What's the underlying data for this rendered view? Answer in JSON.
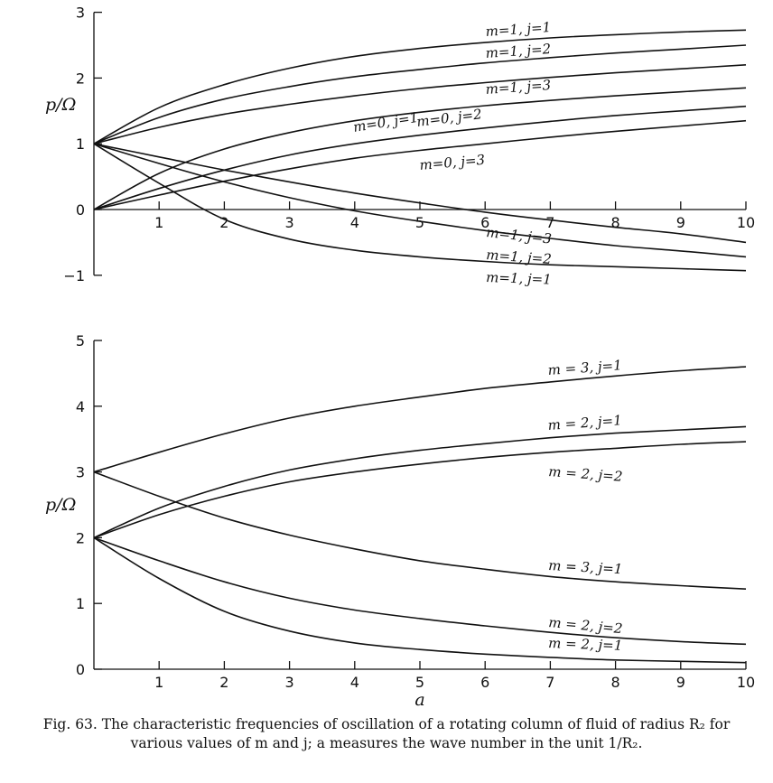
{
  "chart_data": [
    {
      "type": "line",
      "ylabel": "p/Ω",
      "xlabel": "",
      "xlim": [
        0,
        10
      ],
      "ylim": [
        -1,
        3
      ],
      "xticks": [
        1,
        2,
        3,
        4,
        5,
        6,
        7,
        8,
        9,
        10
      ],
      "yticks": [
        -1,
        0,
        1,
        2,
        3
      ],
      "series": [
        {
          "name": "m=1, j=1",
          "x": [
            0,
            1,
            2,
            3,
            4,
            5,
            6,
            7,
            8,
            9,
            10
          ],
          "y": [
            1,
            1.55,
            1.9,
            2.15,
            2.33,
            2.45,
            2.54,
            2.61,
            2.66,
            2.7,
            2.73
          ]
        },
        {
          "name": "m=1, j=2",
          "x": [
            0,
            1,
            2,
            3,
            4,
            5,
            6,
            7,
            8,
            9,
            10
          ],
          "y": [
            1,
            1.4,
            1.68,
            1.87,
            2.02,
            2.13,
            2.23,
            2.31,
            2.38,
            2.44,
            2.5
          ]
        },
        {
          "name": "m=1, j=3",
          "x": [
            0,
            1,
            2,
            3,
            4,
            5,
            6,
            7,
            8,
            9,
            10
          ],
          "y": [
            1,
            1.25,
            1.45,
            1.6,
            1.73,
            1.84,
            1.93,
            2.01,
            2.08,
            2.14,
            2.2
          ]
        },
        {
          "name": "m=0, j=1",
          "x": [
            0,
            1,
            2,
            3,
            4,
            5,
            6,
            7,
            8,
            9,
            10
          ],
          "y": [
            0,
            0.55,
            0.92,
            1.17,
            1.35,
            1.48,
            1.58,
            1.66,
            1.73,
            1.79,
            1.85
          ]
        },
        {
          "name": "m=0, j=2",
          "x": [
            0,
            1,
            2,
            3,
            4,
            5,
            6,
            7,
            8,
            9,
            10
          ],
          "y": [
            0,
            0.32,
            0.6,
            0.83,
            1.0,
            1.13,
            1.24,
            1.34,
            1.43,
            1.5,
            1.57
          ]
        },
        {
          "name": "m=0, j=3",
          "x": [
            0,
            1,
            2,
            3,
            4,
            5,
            6,
            7,
            8,
            9,
            10
          ],
          "y": [
            0,
            0.22,
            0.43,
            0.62,
            0.78,
            0.9,
            1.0,
            1.1,
            1.19,
            1.27,
            1.35
          ]
        },
        {
          "name": "m=1, j=3",
          "x": [
            0,
            1,
            2,
            3,
            4,
            5,
            6,
            7,
            8,
            9,
            10
          ],
          "y": [
            1,
            0.8,
            0.6,
            0.42,
            0.25,
            0.1,
            -0.04,
            -0.16,
            -0.27,
            -0.37,
            -0.5
          ]
        },
        {
          "name": "m=1, j=2",
          "x": [
            0,
            1,
            2,
            3,
            4,
            5,
            6,
            7,
            8,
            9,
            10
          ],
          "y": [
            1,
            0.7,
            0.42,
            0.18,
            -0.02,
            -0.18,
            -0.32,
            -0.44,
            -0.55,
            -0.63,
            -0.72
          ]
        },
        {
          "name": "m=1, j=1",
          "x": [
            0,
            1,
            2,
            3,
            4,
            5,
            6,
            7,
            8,
            9,
            10
          ],
          "y": [
            1,
            0.4,
            -0.15,
            -0.45,
            -0.62,
            -0.72,
            -0.79,
            -0.84,
            -0.87,
            -0.9,
            -0.93
          ]
        }
      ]
    },
    {
      "type": "line",
      "ylabel": "p/Ω",
      "xlabel": "a",
      "xlim": [
        0,
        10
      ],
      "ylim": [
        0,
        5
      ],
      "xticks": [
        1,
        2,
        3,
        4,
        5,
        6,
        7,
        8,
        9,
        10
      ],
      "yticks": [
        0,
        1,
        2,
        3,
        4,
        5
      ],
      "series": [
        {
          "name": "m = 3, j=1",
          "x": [
            0,
            1,
            2,
            3,
            4,
            5,
            6,
            7,
            8,
            9,
            10
          ],
          "y": [
            3,
            3.3,
            3.58,
            3.82,
            4.0,
            4.14,
            4.27,
            4.37,
            4.46,
            4.54,
            4.6
          ]
        },
        {
          "name": "m = 2, j=1",
          "x": [
            0,
            1,
            2,
            3,
            4,
            5,
            6,
            7,
            8,
            9,
            10
          ],
          "y": [
            2,
            2.45,
            2.78,
            3.03,
            3.2,
            3.33,
            3.43,
            3.52,
            3.59,
            3.64,
            3.69
          ]
        },
        {
          "name": "m = 2, j=2",
          "x": [
            0,
            1,
            2,
            3,
            4,
            5,
            6,
            7,
            8,
            9,
            10
          ],
          "y": [
            2,
            2.35,
            2.63,
            2.85,
            3.0,
            3.12,
            3.22,
            3.3,
            3.36,
            3.42,
            3.46
          ]
        },
        {
          "name": "m = 3, j=1",
          "x": [
            0,
            1,
            2,
            3,
            4,
            5,
            6,
            7,
            8,
            9,
            10
          ],
          "y": [
            3,
            2.63,
            2.3,
            2.04,
            1.83,
            1.65,
            1.52,
            1.41,
            1.33,
            1.27,
            1.22
          ]
        },
        {
          "name": "m = 2, j=2",
          "x": [
            0,
            1,
            2,
            3,
            4,
            5,
            6,
            7,
            8,
            9,
            10
          ],
          "y": [
            2,
            1.65,
            1.33,
            1.08,
            0.9,
            0.77,
            0.66,
            0.56,
            0.48,
            0.42,
            0.38
          ]
        },
        {
          "name": "m = 2, j=1",
          "x": [
            0,
            1,
            2,
            3,
            4,
            5,
            6,
            7,
            8,
            9,
            10
          ],
          "y": [
            2,
            1.38,
            0.88,
            0.58,
            0.4,
            0.3,
            0.23,
            0.18,
            0.14,
            0.12,
            0.1
          ]
        }
      ]
    }
  ],
  "caption": "Fig. 63. The characteristic frequencies of oscillation of a rotating column of fluid of radius R₂ for various values of m and j; a measures the wave number in the unit 1/R₂."
}
